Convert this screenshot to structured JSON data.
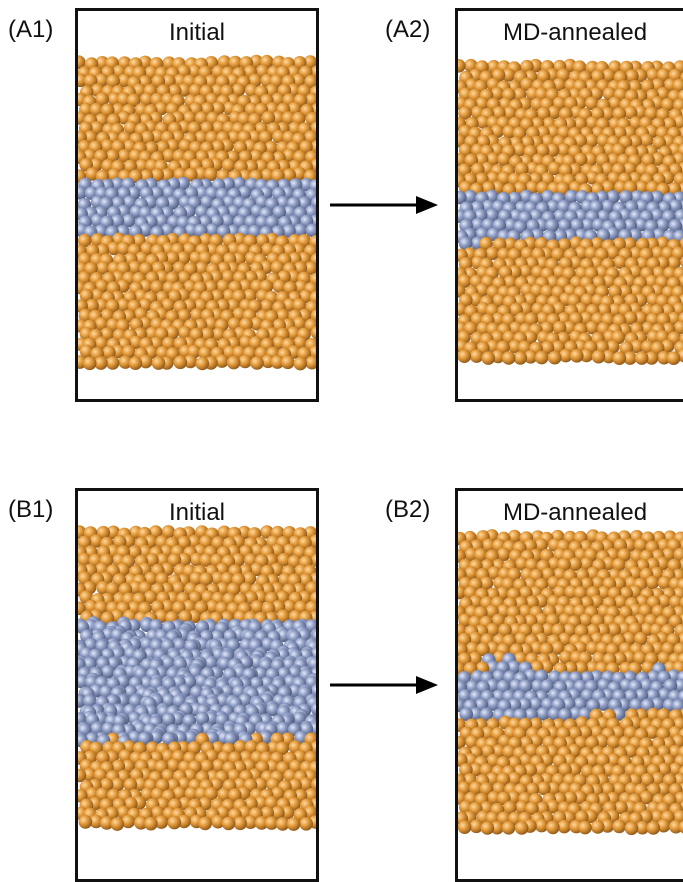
{
  "rows": [
    {
      "initial": {
        "label": "(A1)",
        "title": "Initial"
      },
      "annealed": {
        "label": "(A2)",
        "title": "MD-annealed"
      }
    },
    {
      "initial": {
        "label": "(B1)",
        "title": "Initial"
      },
      "annealed": {
        "label": "(B2)",
        "title": "MD-annealed"
      }
    }
  ],
  "colors": {
    "host_atom": "#e39a3a",
    "interlayer_atom": "#8e9cc4",
    "frame": "#111111",
    "arrow": "#000000"
  }
}
